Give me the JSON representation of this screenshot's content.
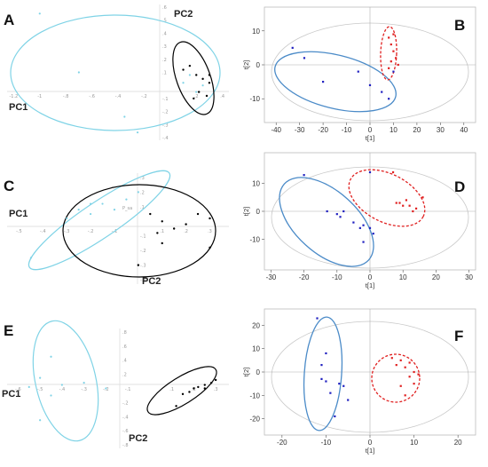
{
  "chart_data": [
    {
      "type": "scatter",
      "panel_label": "A",
      "axis_labels": [
        "PC1",
        "PC2"
      ],
      "x_ticks": [
        -1.2,
        -1,
        -0.8,
        -0.6,
        -0.4,
        -0.2,
        0.2,
        0.4
      ],
      "y_ticks": [
        0.6,
        0.5,
        0.4,
        0.3,
        0.2,
        0.1,
        -0.1,
        -0.2,
        -0.3,
        -0.4
      ],
      "series": [
        {
          "color": "#7fd3e6",
          "points": [
            [
              -1.0,
              0.55
            ],
            [
              -0.7,
              0.1
            ],
            [
              -0.35,
              -0.24
            ],
            [
              -0.25,
              -0.36
            ],
            [
              0.1,
              0.02
            ],
            [
              0.15,
              0.08
            ],
            [
              0.2,
              -0.05
            ],
            [
              0.25,
              0.0
            ]
          ]
        },
        {
          "color": "#000000",
          "points": [
            [
              0.1,
              0.12
            ],
            [
              0.15,
              0.15
            ],
            [
              0.2,
              0.08
            ],
            [
              0.25,
              0.05
            ],
            [
              0.3,
              0.02
            ],
            [
              0.22,
              -0.05
            ],
            [
              0.28,
              -0.08
            ],
            [
              0.18,
              -0.1
            ],
            [
              0.3,
              0.08
            ]
          ]
        }
      ]
    },
    {
      "type": "scatter",
      "panel_label": "B",
      "xlabel": "t[1]",
      "ylabel": "t[2]",
      "xlim": [
        -45,
        45
      ],
      "ylim": [
        -17,
        17
      ],
      "x_ticks": [
        -40,
        -30,
        -20,
        -10,
        0,
        10,
        20,
        30,
        40
      ],
      "y_ticks": [
        10,
        0,
        -10
      ],
      "series": [
        {
          "color": "#2020c0",
          "points": [
            [
              -33,
              5
            ],
            [
              -28,
              2
            ],
            [
              -20,
              -5
            ],
            [
              -5,
              -2
            ],
            [
              0,
              -6
            ],
            [
              5,
              -8
            ],
            [
              8,
              -10
            ],
            [
              10,
              -2
            ]
          ]
        },
        {
          "color": "#e02020",
          "points": [
            [
              8,
              8
            ],
            [
              9,
              6
            ],
            [
              10,
              4
            ],
            [
              11,
              2
            ],
            [
              9,
              1
            ],
            [
              12,
              0
            ],
            [
              8,
              -1
            ],
            [
              10,
              9
            ]
          ]
        }
      ]
    },
    {
      "type": "scatter",
      "panel_label": "C",
      "axis_labels": [
        "PC1",
        "PC2"
      ],
      "center_label": "P_sa",
      "x_ticks": [
        -0.5,
        -0.4,
        -0.3,
        -0.2,
        -0.1,
        0.1,
        0.2,
        0.3
      ],
      "y_ticks": [
        0.3,
        0.2,
        0.1,
        -0.1,
        -0.2,
        -0.3,
        -0.4
      ],
      "series": [
        {
          "color": "#7fd3e6",
          "points": [
            [
              -0.45,
              -0.25
            ],
            [
              -0.3,
              0.02
            ],
            [
              -0.25,
              0.08
            ],
            [
              -0.2,
              0.12
            ],
            [
              -0.15,
              0.12
            ],
            [
              -0.1,
              0.08
            ],
            [
              -0.05,
              0.15
            ],
            [
              0.0,
              0.2
            ],
            [
              -0.2,
              0.05
            ]
          ]
        },
        {
          "color": "#000000",
          "points": [
            [
              0.05,
              0.05
            ],
            [
              0.1,
              0.0
            ],
            [
              0.15,
              -0.05
            ],
            [
              0.2,
              -0.02
            ],
            [
              0.25,
              0.05
            ],
            [
              0.3,
              0.02
            ],
            [
              0.1,
              -0.15
            ],
            [
              0.3,
              -0.18
            ],
            [
              0.0,
              -0.3
            ],
            [
              0.08,
              -0.08
            ]
          ]
        }
      ]
    },
    {
      "type": "scatter",
      "panel_label": "D",
      "xlabel": "t[1]",
      "ylabel": "t[2]",
      "xlim": [
        -32,
        32
      ],
      "ylim": [
        -21,
        21
      ],
      "x_ticks": [
        -30,
        -20,
        -10,
        0,
        10,
        20,
        30
      ],
      "y_ticks": [
        10,
        0,
        -10
      ],
      "series": [
        {
          "color": "#2020c0",
          "points": [
            [
              -20,
              13
            ],
            [
              -13,
              0
            ],
            [
              -10,
              -1
            ],
            [
              -9,
              -2
            ],
            [
              -8,
              0
            ],
            [
              -5,
              -4
            ],
            [
              -3,
              -6
            ],
            [
              -2,
              -5
            ],
            [
              0,
              -6
            ],
            [
              -2,
              -11
            ],
            [
              1,
              -8
            ],
            [
              0,
              14
            ]
          ]
        },
        {
          "color": "#e02020",
          "points": [
            [
              7,
              14
            ],
            [
              8,
              3
            ],
            [
              9,
              3
            ],
            [
              10,
              2
            ],
            [
              11,
              4
            ],
            [
              12,
              2
            ],
            [
              13,
              0
            ],
            [
              14,
              1
            ],
            [
              16,
              5
            ]
          ]
        }
      ]
    },
    {
      "type": "scatter",
      "panel_label": "E",
      "axis_labels": [
        "PC1",
        "PC2"
      ],
      "x_ticks": [
        -0.6,
        -0.5,
        -0.4,
        -0.3,
        -0.2,
        -0.1,
        0.1,
        0.2,
        0.3
      ],
      "y_ticks": [
        0.8,
        0.6,
        0.4,
        0.2,
        -0.2,
        -0.4,
        -0.6,
        -0.8
      ],
      "series": [
        {
          "color": "#7fd3e6",
          "points": [
            [
              -0.45,
              0.45
            ],
            [
              -0.5,
              0.15
            ],
            [
              -0.55,
              0.02
            ],
            [
              -0.4,
              0.05
            ],
            [
              -0.3,
              0.08
            ],
            [
              -0.2,
              0.0
            ],
            [
              -0.45,
              -0.1
            ],
            [
              -0.5,
              -0.45
            ]
          ]
        },
        {
          "color": "#000000",
          "points": [
            [
              0.15,
              -0.08
            ],
            [
              0.18,
              -0.05
            ],
            [
              0.2,
              0.0
            ],
            [
              0.22,
              0.02
            ],
            [
              0.25,
              0.05
            ],
            [
              0.28,
              0.08
            ],
            [
              0.3,
              0.12
            ],
            [
              0.25,
              0.0
            ],
            [
              0.12,
              -0.25
            ]
          ]
        }
      ]
    },
    {
      "type": "scatter",
      "panel_label": "F",
      "xlabel": "t[1]",
      "ylabel": "t[2]",
      "xlim": [
        -24,
        24
      ],
      "ylim": [
        -27,
        27
      ],
      "x_ticks": [
        -20,
        -10,
        0,
        10,
        20
      ],
      "y_ticks": [
        20,
        10,
        0,
        -10,
        -20
      ],
      "series": [
        {
          "color": "#2020c0",
          "points": [
            [
              -12,
              23
            ],
            [
              -10,
              8
            ],
            [
              -11,
              3
            ],
            [
              -10,
              -4
            ],
            [
              -7,
              -5
            ],
            [
              -9,
              -9
            ],
            [
              -6,
              -6
            ],
            [
              -5,
              -12
            ],
            [
              -8,
              -19
            ],
            [
              -11,
              -3
            ]
          ]
        },
        {
          "color": "#e02020",
          "points": [
            [
              5,
              6
            ],
            [
              6,
              3
            ],
            [
              7,
              5
            ],
            [
              8,
              2
            ],
            [
              9,
              4
            ],
            [
              10,
              0
            ],
            [
              11,
              -1
            ],
            [
              9,
              -2
            ],
            [
              8,
              -10
            ],
            [
              7,
              -6
            ],
            [
              10,
              -5
            ]
          ]
        }
      ]
    }
  ]
}
